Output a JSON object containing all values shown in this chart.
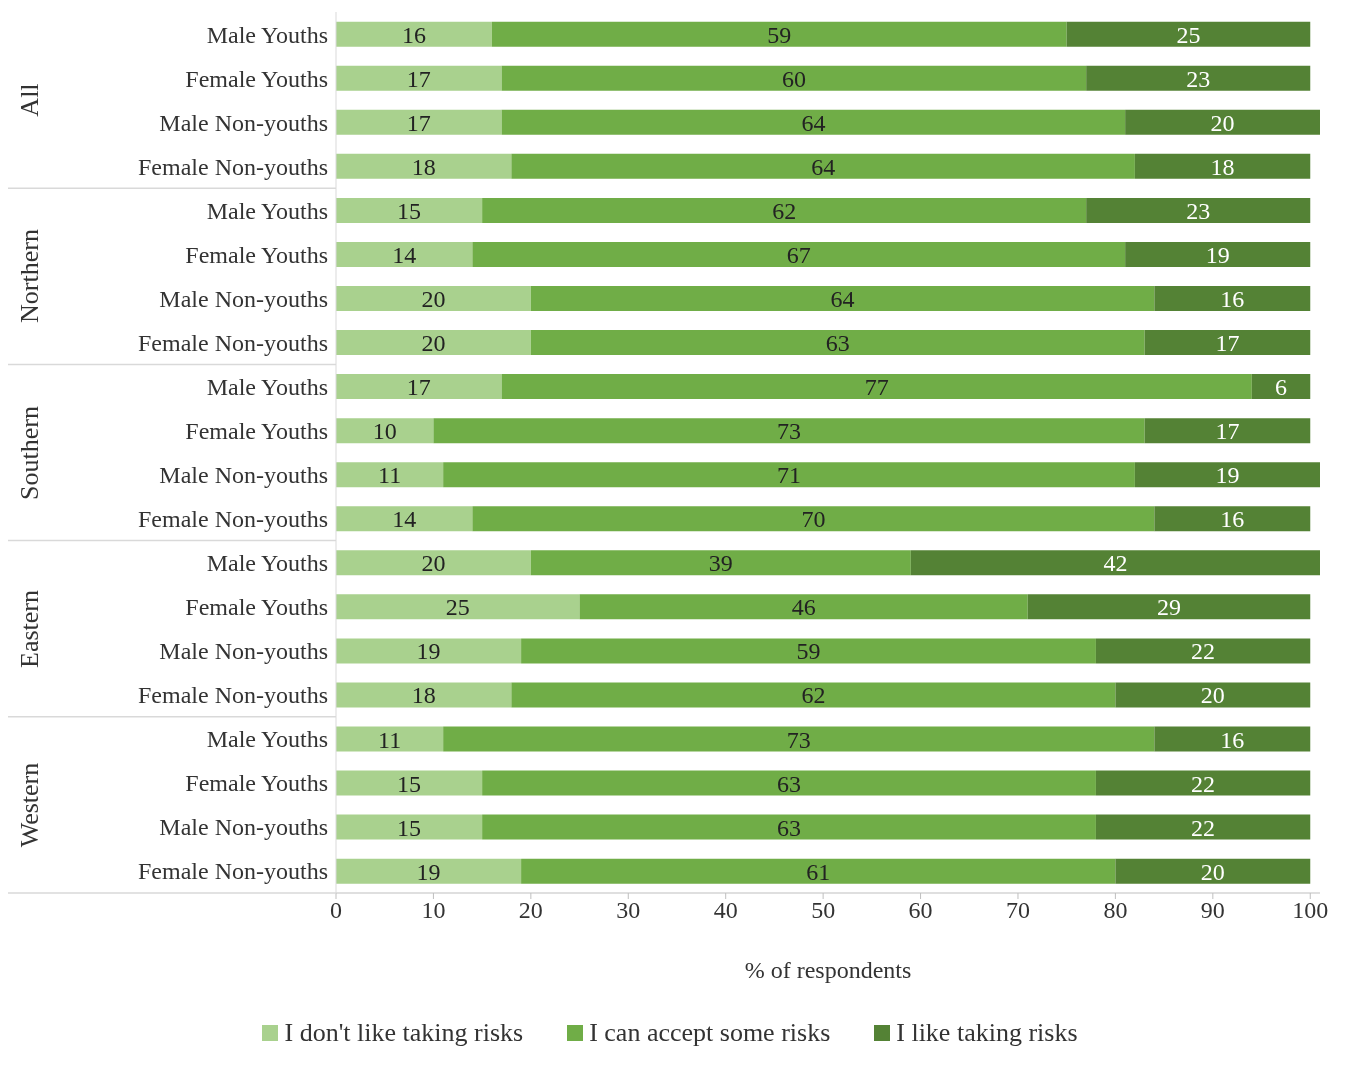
{
  "chart_data": {
    "type": "bar",
    "orientation": "horizontal",
    "stacked": true,
    "data_labels": true,
    "xlabel": "% of respondents",
    "categories": [
      "Male Youths",
      "Female Youths",
      "Male Non-youths",
      "Female Non-youths",
      "Male Youths",
      "Female Youths",
      "Male Non-youths",
      "Female Non-youths",
      "Male Youths",
      "Female Youths",
      "Male Non-youths",
      "Female Non-youths",
      "Male Youths",
      "Female Youths",
      "Male Non-youths",
      "Female Non-youths",
      "Male Youths",
      "Female Youths",
      "Male Non-youths",
      "Female Non-youths"
    ],
    "annotations": [
      "All",
      "Northern",
      "Southern",
      "Eastern",
      "Western"
    ],
    "series": [
      {
        "name": "I don't like taking risks",
        "color": "#a9d18e",
        "values": [
          16,
          17,
          17,
          18,
          15,
          14,
          20,
          20,
          17,
          10,
          11,
          14,
          20,
          25,
          19,
          18,
          11,
          15,
          15,
          19
        ]
      },
      {
        "name": "I can accept some risks",
        "color": "#70ad47",
        "values": [
          59,
          60,
          64,
          64,
          62,
          67,
          64,
          63,
          77,
          73,
          71,
          70,
          39,
          46,
          59,
          62,
          73,
          63,
          63,
          61
        ]
      },
      {
        "name": "I like taking risks",
        "color": "#548235",
        "values": [
          25,
          23,
          20,
          18,
          23,
          19,
          16,
          17,
          6,
          17,
          19,
          16,
          42,
          29,
          22,
          20,
          16,
          22,
          22,
          20
        ]
      }
    ],
    "xlim": [
      0,
      101
    ],
    "xticks": [
      0,
      10,
      20,
      30,
      40,
      50,
      60,
      70,
      80,
      90,
      100
    ],
    "grid": false,
    "legend": "bottom"
  }
}
